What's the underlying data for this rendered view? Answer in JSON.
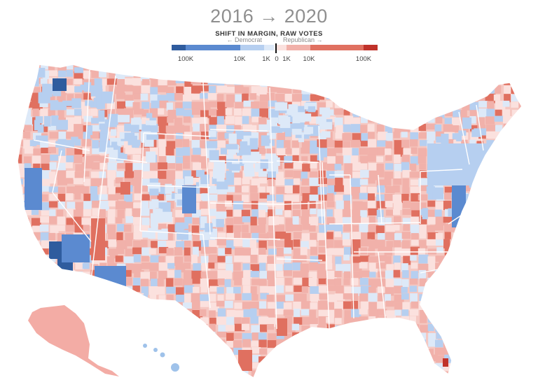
{
  "title": "2016 → 2020",
  "subtitle": "SHIFT IN MARGIN, RAW VOTES",
  "legend": {
    "democrat_label": "← Democrat",
    "republican_label": "Republican →",
    "tick_labels": [
      "100K",
      "10K",
      "1K",
      "0",
      "1K",
      "10K",
      "100K"
    ],
    "colors": {
      "dem_100k": "#2f5c9e",
      "dem_10k": "#5b8ad0",
      "dem_1k": "#b6cff0",
      "dem_low": "#dde9f8",
      "rep_low": "#fbe1de",
      "rep_1k": "#f1b1aa",
      "rep_10k": "#e07060",
      "rep_100k": "#c0322a"
    }
  },
  "map": {
    "type": "choropleth",
    "geography": "US counties",
    "highlights": [
      {
        "area": "Los Angeles",
        "shift": "dem_100k"
      },
      {
        "area": "Maricopa",
        "shift": "dem_10k"
      },
      {
        "area": "Seattle",
        "shift": "dem_100k"
      },
      {
        "area": "Mohave",
        "shift": "rep_10k"
      },
      {
        "area": "Miami-Dade",
        "shift": "rep_100k"
      },
      {
        "area": "Rio Grande Valley",
        "shift": "rep_10k"
      }
    ]
  }
}
